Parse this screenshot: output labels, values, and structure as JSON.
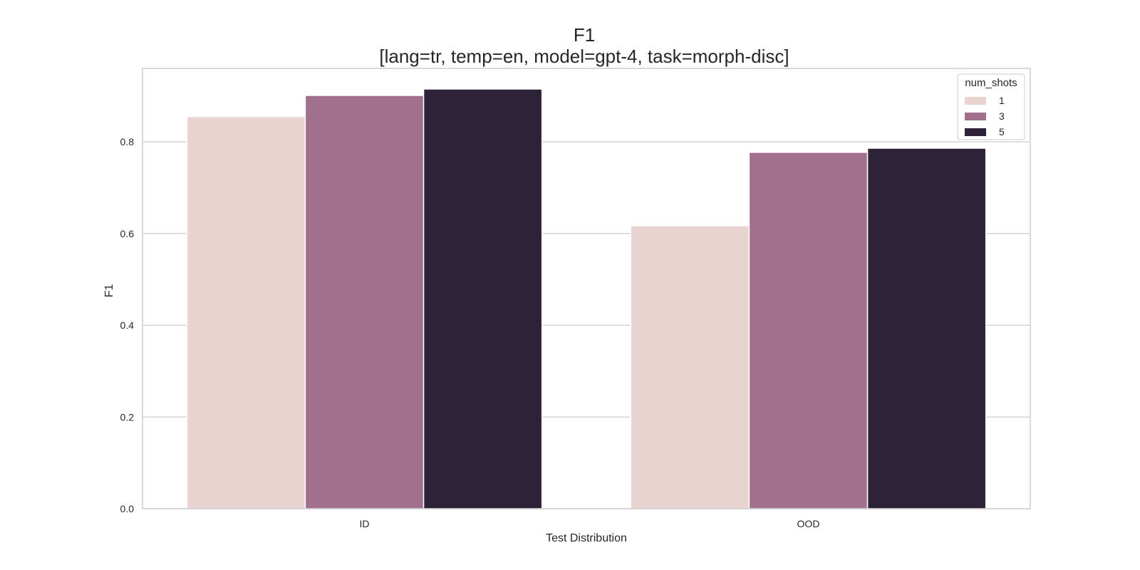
{
  "chart_data": {
    "type": "bar",
    "title": "F1",
    "subtitle": "[lang=tr, temp=en, model=gpt-4, task=morph-disc]",
    "xlabel": "Test Distribution",
    "ylabel": "F1",
    "categories": [
      "ID",
      "OOD"
    ],
    "ylim": [
      0,
      0.96
    ],
    "yticks": [
      0.0,
      0.2,
      0.4,
      0.6,
      0.8
    ],
    "ytick_labels": [
      "0.0",
      "0.2",
      "0.4",
      "0.6",
      "0.8"
    ],
    "grid": "horizontal",
    "legend": {
      "title": "num_shots",
      "placement": "top-right"
    },
    "series": [
      {
        "name": "1",
        "color": "#e8d3d0",
        "values": [
          0.855,
          0.617
        ]
      },
      {
        "name": "3",
        "color": "#a0708c",
        "values": [
          0.901,
          0.777
        ]
      },
      {
        "name": "5",
        "color": "#2e2239",
        "values": [
          0.915,
          0.786
        ]
      }
    ]
  }
}
